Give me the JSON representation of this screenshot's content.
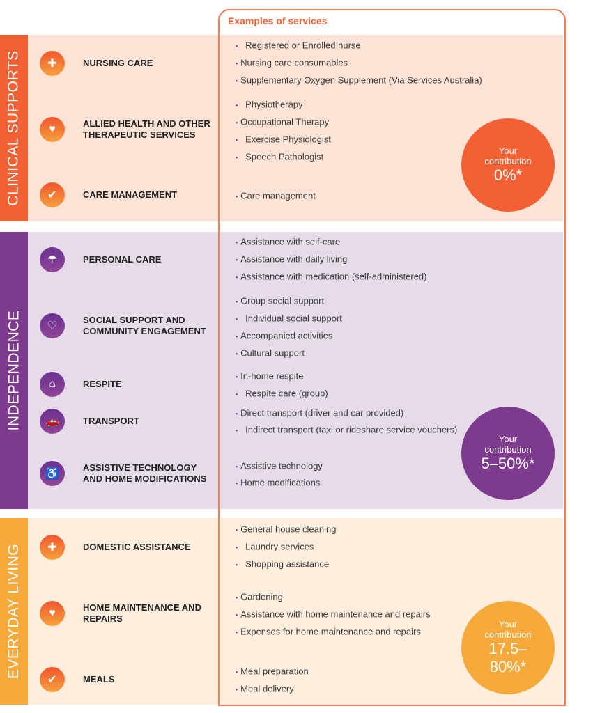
{
  "header": "Examples of services",
  "colors": {
    "clinical": "#f26034",
    "independence": "#7e3a8c",
    "everyday": "#f6a93b"
  },
  "sections": [
    {
      "title": "CLINICAL SUPPORTS",
      "contribution_label_1": "Your",
      "contribution_label_2": "contribution",
      "contribution_value": "0%*",
      "categories": [
        {
          "label": "NURSING CARE",
          "icon": "nurse-cap-icon"
        },
        {
          "label": "ALLIED HEALTH AND OTHER THERAPEUTIC SERVICES",
          "icon": "heart-plus-icon"
        },
        {
          "label": "CARE MANAGEMENT",
          "icon": "chat-check-icon"
        }
      ],
      "services": [
        "Registered or Enrolled nurse",
        "Nursing care consumables",
        "Supplementary Oxygen Supplement (Via Services Australia)",
        "Physiotherapy",
        "Occupational Therapy",
        "Exercise Physiologist",
        "Speech Pathologist",
        "Care management"
      ]
    },
    {
      "title": "INDEPENDENCE",
      "contribution_label_1": "Your",
      "contribution_label_2": "contribution",
      "contribution_value": "5–50%*",
      "categories": [
        {
          "label": "PERSONAL CARE",
          "icon": "shower-icon"
        },
        {
          "label": "SOCIAL SUPPORT AND COMMUNITY ENGAGEMENT",
          "icon": "hands-heart-icon"
        },
        {
          "label": "RESPITE",
          "icon": "home-icon"
        },
        {
          "label": "TRANSPORT",
          "icon": "car-icon"
        },
        {
          "label": "ASSISTIVE TECHNOLOGY AND HOME MODIFICATIONS",
          "icon": "wheelchair-icon"
        }
      ],
      "services": [
        "Assistance with self-care",
        "Assistance with daily living",
        "Assistance with medication (self-administered)",
        "Group social support",
        "Individual social support",
        "Accompanied activities",
        "Cultural support",
        "In-home respite",
        "Respite care (group)",
        "Direct transport (driver and car provided)",
        "Indirect transport (taxi or rideshare service vouchers)",
        "Assistive technology",
        "Home modifications"
      ]
    },
    {
      "title": "EVERYDAY LIVING",
      "contribution_label_1": "Your",
      "contribution_label_2": "contribution",
      "contribution_value": "17.5–80%*",
      "categories": [
        {
          "label": "DOMESTIC ASSISTANCE",
          "icon": "nurse-cap-icon"
        },
        {
          "label": "HOME MAINTENANCE AND REPAIRS",
          "icon": "heart-plus-icon"
        },
        {
          "label": "MEALS",
          "icon": "chat-check-icon"
        }
      ],
      "services": [
        "General house cleaning",
        "Laundry services",
        "Shopping assistance",
        "Gardening",
        "Assistance with home maintenance and repairs",
        "Expenses for home maintenance and repairs",
        "Meal preparation",
        "Meal delivery"
      ]
    }
  ]
}
